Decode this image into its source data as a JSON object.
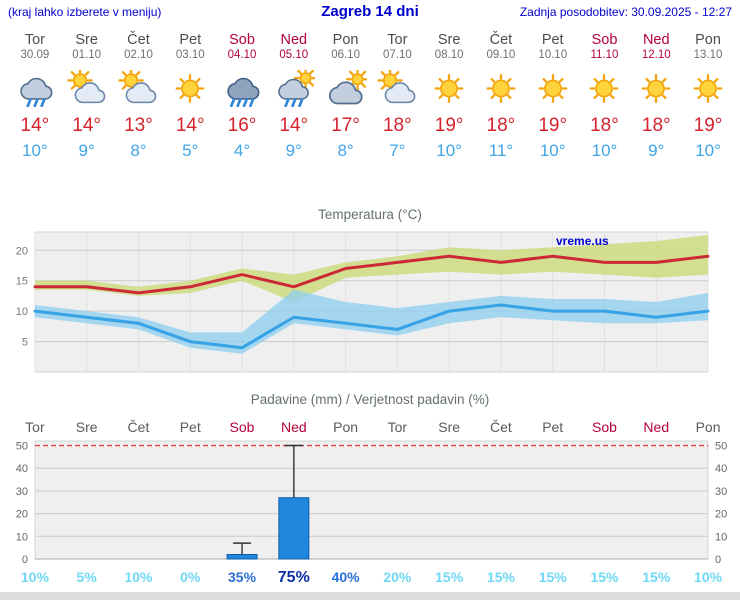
{
  "header": {
    "hint": "(kraj lahko izberete v meniju)",
    "title": "Zagreb 14 dni",
    "updated": "Zadnja posodobitev: 30.09.2025 - 12:27"
  },
  "colors": {
    "link_blue": "#0000cc",
    "weekday": "#4d4d4d",
    "weekend": "#b30338",
    "temp_high": "#d5232e",
    "temp_low": "#3fa5e8",
    "pct_low": "#6fd8f5",
    "pct_mid": "#2a6fd6",
    "pct_high": "#0a2fa8"
  },
  "days": [
    {
      "name": "Tor",
      "date": "30.09",
      "weekend": false,
      "icon": "cloud-rain",
      "high": "14°",
      "low": "10°"
    },
    {
      "name": "Sre",
      "date": "01.10",
      "weekend": false,
      "icon": "sun-cloud",
      "high": "14°",
      "low": "9°"
    },
    {
      "name": "Čet",
      "date": "02.10",
      "weekend": false,
      "icon": "sun-cloud",
      "high": "13°",
      "low": "8°"
    },
    {
      "name": "Pet",
      "date": "03.10",
      "weekend": false,
      "icon": "sunny",
      "high": "14°",
      "low": "5°"
    },
    {
      "name": "Sob",
      "date": "04.10",
      "weekend": true,
      "icon": "cloud-heavy-rain",
      "high": "16°",
      "low": "4°"
    },
    {
      "name": "Ned",
      "date": "05.10",
      "weekend": true,
      "icon": "sun-cloud-rain",
      "high": "14°",
      "low": "9°"
    },
    {
      "name": "Pon",
      "date": "06.10",
      "weekend": false,
      "icon": "cloudy",
      "high": "17°",
      "low": "8°"
    },
    {
      "name": "Tor",
      "date": "07.10",
      "weekend": false,
      "icon": "sun-cloud",
      "high": "18°",
      "low": "7°"
    },
    {
      "name": "Sre",
      "date": "08.10",
      "weekend": false,
      "icon": "sunny",
      "high": "19°",
      "low": "10°"
    },
    {
      "name": "Čet",
      "date": "09.10",
      "weekend": false,
      "icon": "sunny",
      "high": "18°",
      "low": "11°"
    },
    {
      "name": "Pet",
      "date": "10.10",
      "weekend": false,
      "icon": "sunny",
      "high": "19°",
      "low": "10°"
    },
    {
      "name": "Sob",
      "date": "11.10",
      "weekend": true,
      "icon": "sunny",
      "high": "18°",
      "low": "10°"
    },
    {
      "name": "Ned",
      "date": "12.10",
      "weekend": true,
      "icon": "sunny",
      "high": "18°",
      "low": "9°"
    },
    {
      "name": "Pon",
      "date": "13.10",
      "weekend": false,
      "icon": "sunny",
      "high": "19°",
      "low": "10°"
    }
  ],
  "chart_data": [
    {
      "type": "line",
      "title": "Temperatura (°C)",
      "x_labels": [
        "Tor 30.09",
        "Sre 01.10",
        "Čet 02.10",
        "Pet 03.10",
        "Sob 04.10",
        "Ned 05.10",
        "Pon 06.10",
        "Tor 07.10",
        "Sre 08.10",
        "Čet 09.10",
        "Pet 10.10",
        "Sob 11.10",
        "Ned 12.10",
        "Pon 13.10"
      ],
      "ylim": [
        0,
        23
      ],
      "yticks": [
        5,
        10,
        15,
        20
      ],
      "grid": true,
      "legend": "none",
      "watermark": "vreme.us",
      "series": [
        {
          "name": "max temperature",
          "color": "#cc2936",
          "values": [
            14,
            14,
            13,
            14,
            16,
            14,
            17,
            18,
            19,
            18,
            19,
            18,
            18,
            19
          ]
        },
        {
          "name": "min temperature",
          "color": "#37a2e5",
          "values": [
            10,
            9,
            8,
            5,
            4,
            9,
            8,
            7,
            10,
            11,
            10,
            10,
            9,
            10
          ]
        }
      ],
      "bands": [
        {
          "name": "max temperature range",
          "color": "rgba(203,219,120,0.8)",
          "upper": [
            15,
            15,
            14,
            15,
            17,
            16,
            18,
            19,
            20.5,
            20,
            20.5,
            21,
            21.5,
            22.5
          ],
          "lower": [
            13.5,
            13.5,
            12.5,
            13,
            15,
            11.5,
            15.5,
            16,
            16.5,
            16,
            16.5,
            16,
            15.5,
            16
          ]
        },
        {
          "name": "min temperature range",
          "color": "rgba(140,205,240,0.75)",
          "upper": [
            11,
            10,
            9,
            6.5,
            6.5,
            13.5,
            11.5,
            10.5,
            11.5,
            12.5,
            12,
            12,
            11.5,
            13
          ],
          "lower": [
            9,
            8,
            7,
            4,
            3,
            8,
            7,
            6,
            8,
            9,
            8.5,
            8,
            8,
            8.5
          ]
        }
      ]
    },
    {
      "type": "bar",
      "title": "Padavine (mm) / Verjetnost padavin (%)",
      "ylim": [
        0,
        52
      ],
      "yticks": [
        0,
        10,
        20,
        30,
        40,
        50
      ],
      "threshold": 50,
      "threshold_color": "#e84040",
      "bar_color": "#1f87de",
      "bar_edge": "#0f5fa8",
      "precip_mm": [
        0,
        0,
        0,
        0,
        2,
        27,
        0,
        0,
        0,
        0,
        0,
        0,
        0,
        0
      ],
      "whisker_mm": [
        0,
        0,
        0,
        0,
        7,
        50,
        0,
        0,
        0,
        0,
        0,
        0,
        0,
        0
      ],
      "probability": [
        {
          "label": "10%",
          "level": "low"
        },
        {
          "label": "5%",
          "level": "low"
        },
        {
          "label": "10%",
          "level": "low"
        },
        {
          "label": "0%",
          "level": "low"
        },
        {
          "label": "35%",
          "level": "mid"
        },
        {
          "label": "75%",
          "level": "high"
        },
        {
          "label": "40%",
          "level": "mid"
        },
        {
          "label": "20%",
          "level": "low"
        },
        {
          "label": "15%",
          "level": "low"
        },
        {
          "label": "15%",
          "level": "low"
        },
        {
          "label": "15%",
          "level": "low"
        },
        {
          "label": "15%",
          "level": "low"
        },
        {
          "label": "15%",
          "level": "low"
        },
        {
          "label": "10%",
          "level": "low"
        }
      ]
    }
  ]
}
